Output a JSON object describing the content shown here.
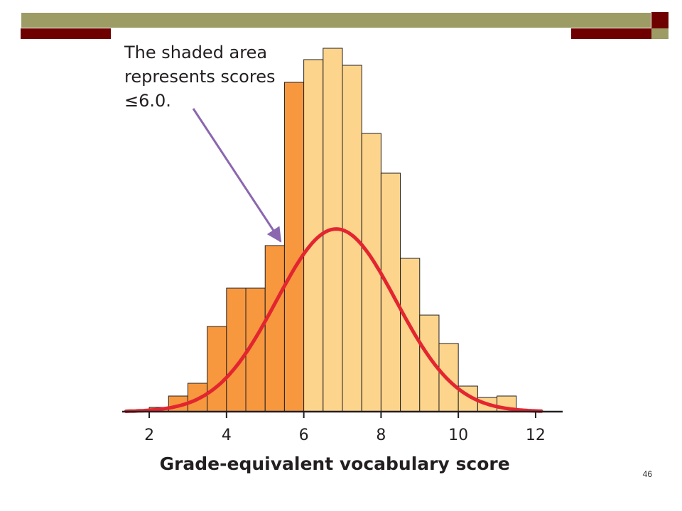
{
  "colors": {
    "bar_shaded": "#f7983f",
    "bar_unshaded": "#fdd48c",
    "bar_stroke": "#231f20",
    "curve": "#e32530",
    "arrow": "#8b67b0",
    "axis": "#231f20",
    "deco_olive": "#9c9c64",
    "deco_maroon": "#6e0000"
  },
  "slide": {
    "number": "46"
  },
  "chart_data": {
    "type": "bar",
    "title": "",
    "xlabel": "Grade-equivalent vocabulary score",
    "ylabel": "",
    "xlim": [
      1.3,
      12.7
    ],
    "ylim": [
      0,
      0.28
    ],
    "x_ticks": [
      2,
      4,
      6,
      8,
      10,
      12
    ],
    "bin_width": 0.5,
    "bin_starts": [
      2.0,
      2.5,
      3.0,
      3.5,
      4.0,
      4.5,
      5.0,
      5.5,
      6.0,
      6.5,
      7.0,
      7.5,
      8.0,
      8.5,
      9.0,
      9.5,
      10.0,
      10.5,
      11.0
    ],
    "values": [
      0.003,
      0.011,
      0.02,
      0.06,
      0.087,
      0.087,
      0.117,
      0.232,
      0.248,
      0.256,
      0.244,
      0.196,
      0.168,
      0.108,
      0.068,
      0.048,
      0.018,
      0.01,
      0.011
    ],
    "shaded_upto": 6.0,
    "curve": {
      "type": "normal",
      "mean": 6.84,
      "sd": 1.55
    },
    "annotation": {
      "lines": [
        "The shaded area",
        "represents scores",
        "≤6.0."
      ],
      "arrow_target": [
        5.4,
        0.12
      ]
    },
    "grid": false,
    "legend": "none"
  }
}
